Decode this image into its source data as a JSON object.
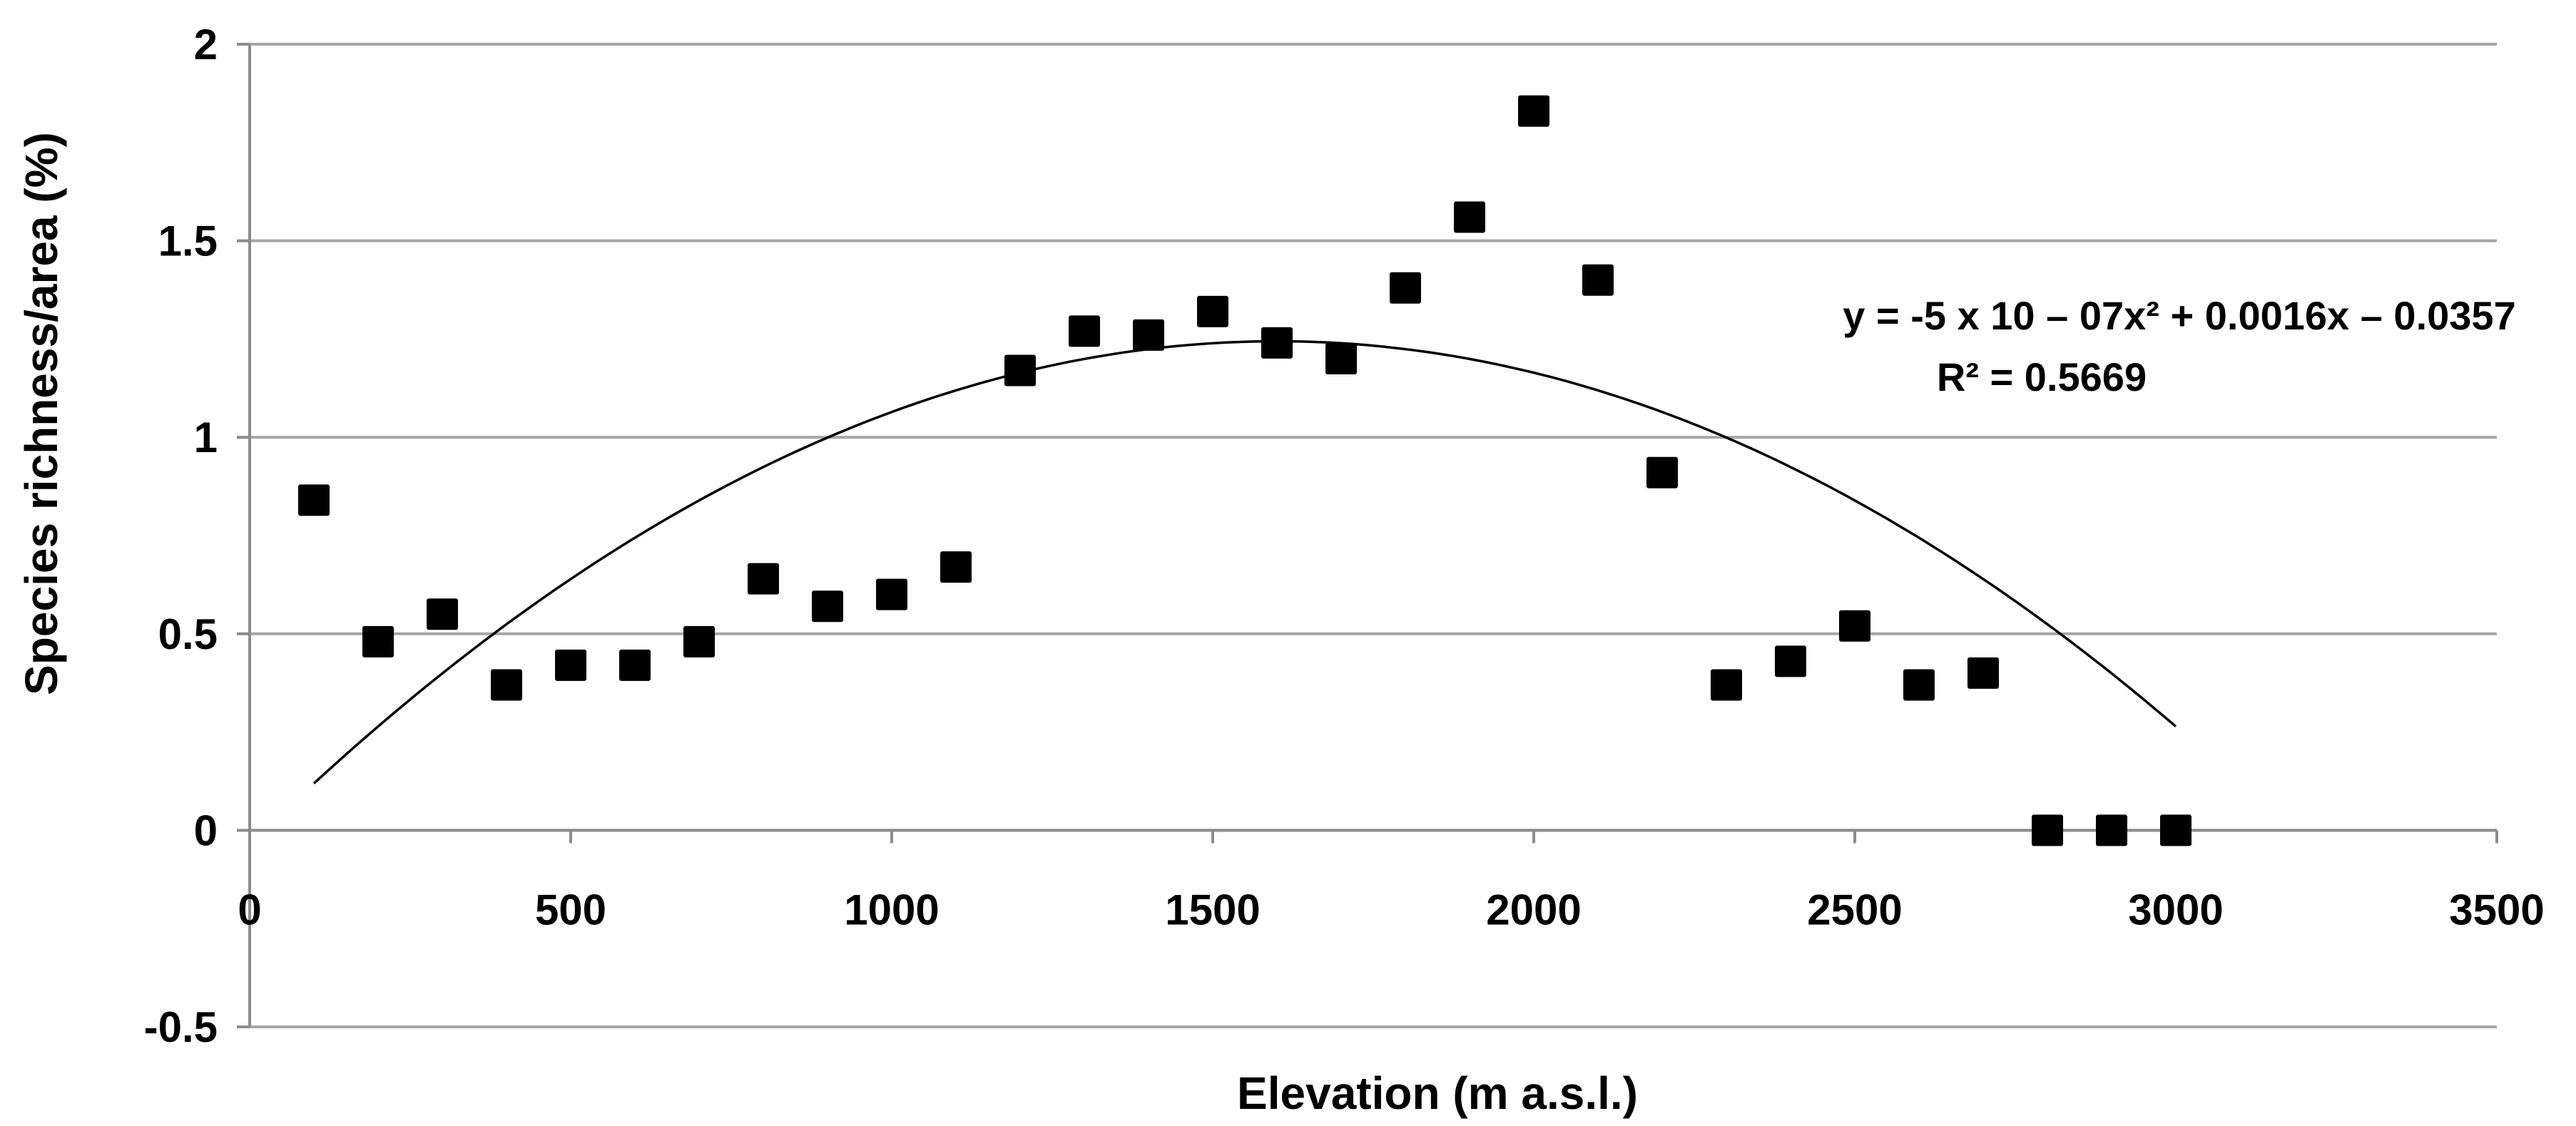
{
  "chart_data": {
    "type": "scatter",
    "title": "",
    "xlabel": "Elevation (m a.s.l.)",
    "ylabel": "Species richness/area (%)",
    "xlim": [
      0,
      3500
    ],
    "ylim": [
      -0.5,
      2
    ],
    "x_ticks": [
      0,
      500,
      1000,
      1500,
      2000,
      2500,
      3000,
      3500
    ],
    "y_ticks": [
      -0.5,
      0,
      0.5,
      1,
      1.5,
      2
    ],
    "x_tick_labels": [
      "0",
      "500",
      "1000",
      "1500",
      "2000",
      "2500",
      "3000",
      "3500"
    ],
    "y_tick_labels": [
      "-0.5",
      "0",
      "0.5",
      "1",
      "1.5",
      "2"
    ],
    "grid": "horizontal",
    "marker": "square",
    "series": [
      {
        "name": "Species richness/area",
        "x": [
          100,
          200,
          300,
          400,
          500,
          600,
          700,
          800,
          900,
          1000,
          1100,
          1200,
          1300,
          1400,
          1500,
          1600,
          1700,
          1800,
          1900,
          2000,
          2100,
          2200,
          2300,
          2400,
          2500,
          2600,
          2700,
          2800,
          2900,
          3000
        ],
        "y": [
          0.84,
          0.48,
          0.55,
          0.37,
          0.42,
          0.42,
          0.48,
          0.64,
          0.57,
          0.6,
          0.67,
          1.17,
          1.27,
          1.26,
          1.32,
          1.24,
          1.2,
          1.38,
          1.56,
          1.83,
          1.4,
          0.91,
          0.37,
          0.43,
          0.52,
          0.37,
          0.4,
          0.0,
          0.0,
          0.0
        ]
      }
    ],
    "trendline": {
      "type": "polynomial",
      "coefficients": [
        -5e-07,
        0.0016,
        -0.0357
      ],
      "x_range": [
        100,
        3000
      ],
      "equation_line1_text": "y = -5 x 10 – 07x² + 0.0016x – 0.0357",
      "equation_line2_text": "R² = 0.5669"
    }
  }
}
